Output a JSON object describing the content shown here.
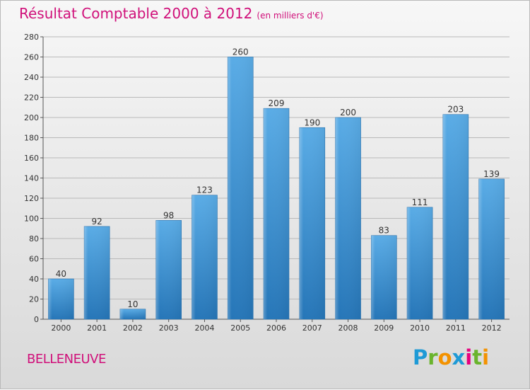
{
  "title": "Résultat Comptable 2000 à 2012",
  "title_unit": "(en milliers d'€)",
  "town": "BELLENEUVE",
  "logo": {
    "text": "Proxiti",
    "letters": [
      {
        "ch": "P",
        "color": "#1e9ad6"
      },
      {
        "ch": "r",
        "color": "#6ab42d"
      },
      {
        "ch": "o",
        "color": "#f39200"
      },
      {
        "ch": "x",
        "color": "#1e9ad6"
      },
      {
        "ch": "i",
        "color": "#e6007e"
      },
      {
        "ch": "t",
        "color": "#6ab42d"
      },
      {
        "ch": "i",
        "color": "#f39200"
      }
    ]
  },
  "colors": {
    "title": "#d0107a",
    "bar_light": "#5aace6",
    "bar_dark": "#2676b8",
    "grid": "#b9b9b9"
  },
  "chart_data": {
    "type": "bar",
    "title": "Résultat Comptable 2000 à 2012",
    "xlabel": "",
    "ylabel": "",
    "categories": [
      "2000",
      "2001",
      "2002",
      "2003",
      "2004",
      "2005",
      "2006",
      "2007",
      "2008",
      "2009",
      "2010",
      "2011",
      "2012"
    ],
    "values": [
      40,
      92,
      10,
      98,
      123,
      260,
      209,
      190,
      200,
      83,
      111,
      203,
      139
    ],
    "ylim": [
      0,
      280
    ],
    "yticks": [
      0,
      20,
      40,
      60,
      80,
      100,
      120,
      140,
      160,
      180,
      200,
      220,
      240,
      260,
      280
    ],
    "grid": true
  }
}
